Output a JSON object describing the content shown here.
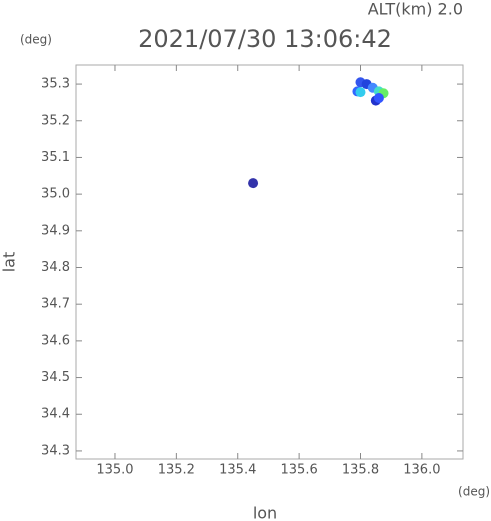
{
  "chart_data": {
    "type": "scatter",
    "title": "2021/07/30 13:06:42",
    "annotation": "ALT(km)  2.0",
    "x_unit": "(deg)",
    "y_unit": "(deg)",
    "x_label": "lon",
    "y_label": "lat",
    "x": [
      135.8,
      135.82,
      135.79,
      135.8,
      135.84,
      135.86,
      135.875,
      135.85,
      135.86,
      135.45
    ],
    "y": [
      35.305,
      35.3,
      35.28,
      35.278,
      35.29,
      35.28,
      35.275,
      35.255,
      35.262,
      35.03
    ],
    "colors": [
      "#3355ee",
      "#2244dd",
      "#3366ff",
      "#33ccee",
      "#4488ff",
      "#44ddcc",
      "#66ee66",
      "#2233cc",
      "#3355ff",
      "#3333aa"
    ],
    "xlim": [
      134.873,
      136.134
    ],
    "ylim": [
      34.278,
      35.352
    ],
    "xticks": [
      {
        "value": 135.0,
        "label": "135.0"
      },
      135.2,
      135.4,
      135.6,
      135.8,
      {
        "value": 136.0,
        "label": "136.0"
      }
    ],
    "yticks": [
      35.3,
      35.2,
      35.1,
      {
        "value": 35.0,
        "label": "35.0"
      },
      34.9,
      34.8,
      34.7,
      34.6,
      34.5,
      34.4,
      34.3
    ]
  }
}
